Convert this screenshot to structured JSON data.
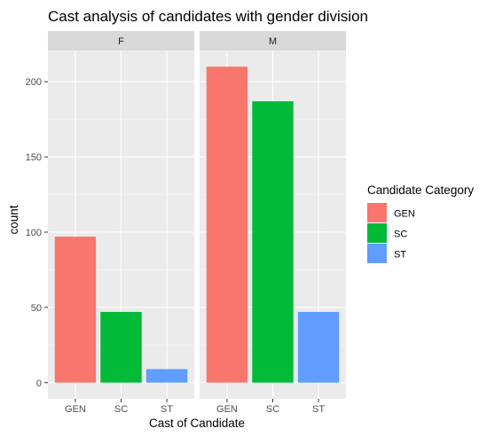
{
  "chart_data": {
    "type": "bar",
    "title": "Cast analysis of candidates with gender division",
    "xlabel": "Cast of Candidate",
    "ylabel": "count",
    "categories": [
      "GEN",
      "SC",
      "ST"
    ],
    "ylim": [
      0,
      215
    ],
    "yticks": [
      0,
      50,
      100,
      150,
      200
    ],
    "grid": true,
    "facets": [
      {
        "name": "F",
        "values": [
          97,
          47,
          9
        ]
      },
      {
        "name": "M",
        "values": [
          210,
          187,
          47
        ]
      }
    ],
    "legend": {
      "title": "Candidate Category",
      "placement": "right",
      "entries": [
        {
          "label": "GEN",
          "color": "#F8766D"
        },
        {
          "label": "SC",
          "color": "#00BA38"
        },
        {
          "label": "ST",
          "color": "#619CFF"
        }
      ]
    },
    "colors": {
      "panel": "#EBEBEB",
      "strip": "#D9D9D9",
      "grid_major": "#FFFFFF",
      "grid_minor": "#F5F5F5"
    }
  }
}
